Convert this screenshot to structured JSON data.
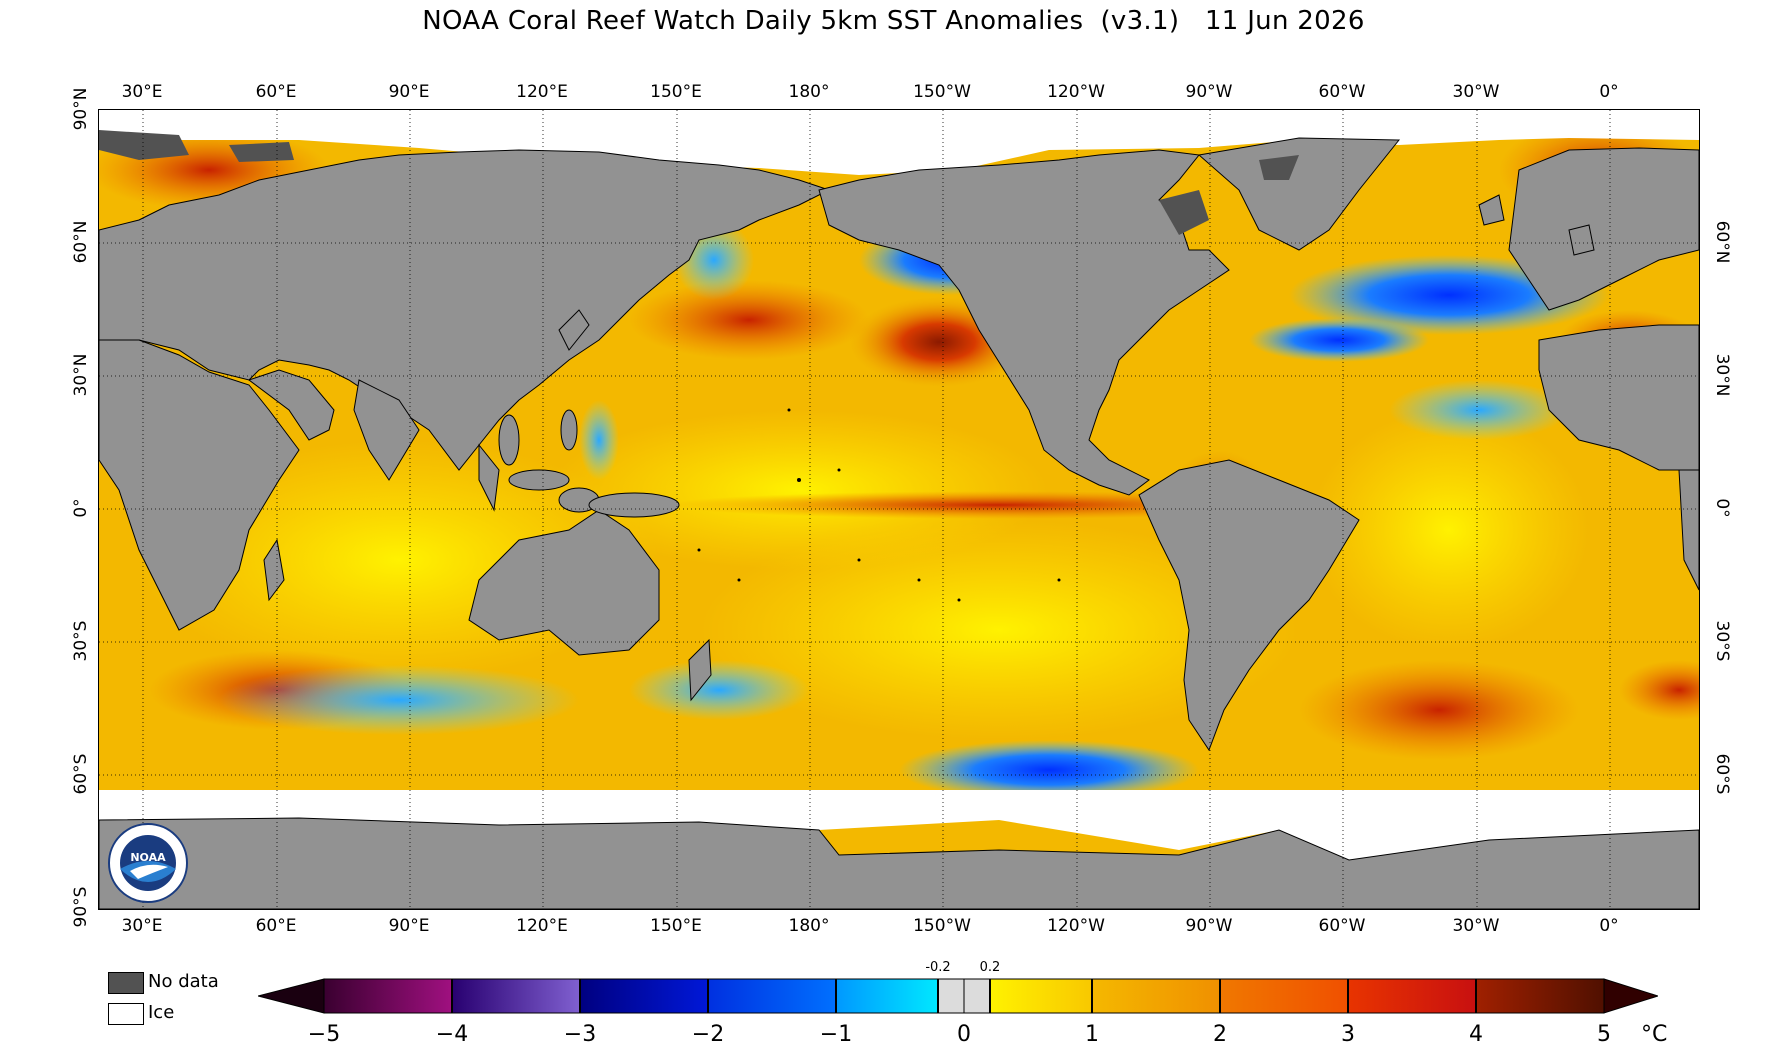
{
  "title": "NOAA Coral Reef Watch Daily 5km SST Anomalies  (v3.1)   11 Jun 2026",
  "map": {
    "longitude_labels": [
      "30°E",
      "60°E",
      "90°E",
      "120°E",
      "150°E",
      "180°",
      "150°W",
      "120°W",
      "90°W",
      "60°W",
      "30°W",
      "0°"
    ],
    "latitude_labels_left": [
      "90°N",
      "60°N",
      "30°N",
      "0°",
      "30°S",
      "60°S",
      "90°S"
    ],
    "latitude_labels_right": [
      "60°N",
      "30°N",
      "0°",
      "30°S",
      "60°S"
    ],
    "land_color": "#929292",
    "no_data_color": "#525252",
    "ice_color": "#ffffff"
  },
  "legend": {
    "no_data_label": "No data",
    "ice_label": "Ice"
  },
  "colorbar": {
    "unit": "°C",
    "ticks": [
      "−5",
      "−4",
      "−3",
      "−2",
      "−1",
      "0",
      "1",
      "2",
      "3",
      "4",
      "5"
    ],
    "small_ticks": [
      "-0.2",
      "0.2"
    ],
    "range": [
      -5,
      5
    ]
  },
  "logo": {
    "text": "NOAA"
  }
}
